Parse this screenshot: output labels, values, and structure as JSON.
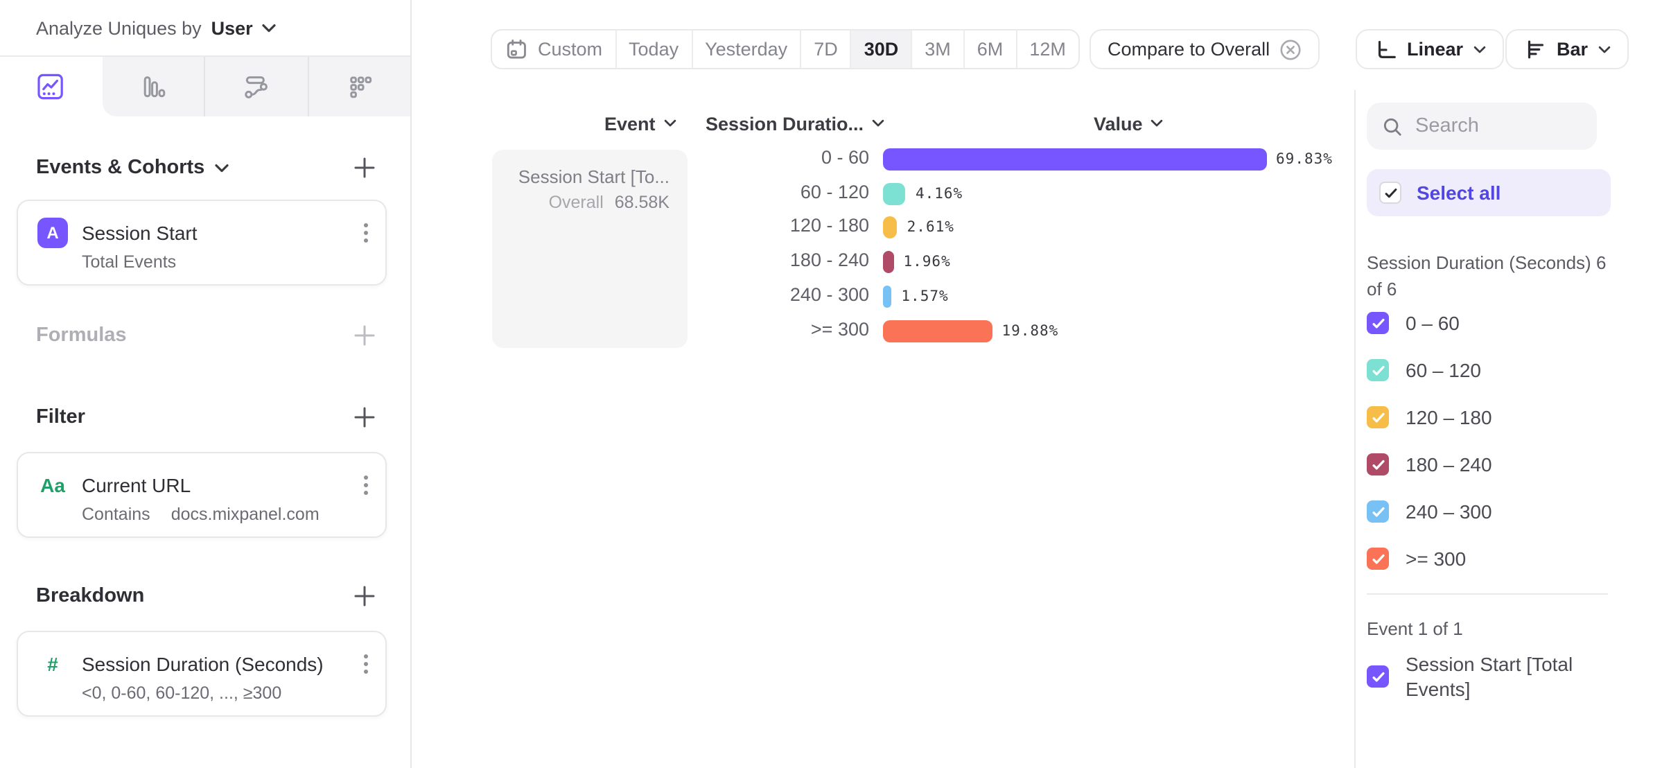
{
  "header": {
    "prefix": "Analyze Uniques by",
    "entity": "User"
  },
  "view_tabs": {
    "icons": [
      "insights",
      "bar-chart",
      "flows",
      "retention"
    ],
    "selected_index": 0
  },
  "builder": {
    "events": {
      "title": "Events & Cohorts",
      "card": {
        "badge": "A",
        "title": "Session Start",
        "subtitle": "Total Events"
      }
    },
    "formulas": {
      "title": "Formulas"
    },
    "filter": {
      "title": "Filter",
      "card": {
        "badge": "Aa",
        "title": "Current URL",
        "operator": "Contains",
        "value": "docs.mixpanel.com"
      }
    },
    "breakdown": {
      "title": "Breakdown",
      "card": {
        "badge": "#",
        "title": "Session Duration (Seconds)",
        "subtitle": "<0, 0-60, 60-120, ..., ≥300"
      }
    }
  },
  "toolbar": {
    "date_ranges": [
      "Custom",
      "Today",
      "Yesterday",
      "7D",
      "30D",
      "3M",
      "6M",
      "12M"
    ],
    "active_range": "30D",
    "compare_label": "Compare to Overall",
    "scale_label": "Linear",
    "chart_type_label": "Bar"
  },
  "chart_data": {
    "type": "bar",
    "orientation": "horizontal",
    "column_headers": [
      "Event",
      "Session Duratio...",
      "Value"
    ],
    "row_group": {
      "event_label": "Session Start [To...",
      "overall_label": "Overall",
      "overall_value": "68.58K"
    },
    "categories": [
      "0 - 60",
      "60 - 120",
      "120 - 180",
      "180 - 240",
      "240 - 300",
      ">= 300"
    ],
    "values": [
      69.83,
      4.16,
      2.61,
      1.96,
      1.57,
      19.88
    ],
    "value_labels": [
      "69.83%",
      "4.16%",
      "2.61%",
      "1.96%",
      "1.57%",
      "19.88%"
    ],
    "colors": [
      "#7856FF",
      "#7CE0D3",
      "#F6BE49",
      "#AF4A67",
      "#77C1F4",
      "#FA7357"
    ],
    "xlim": [
      0,
      71
    ],
    "grid": false,
    "legend_position": "right"
  },
  "legend": {
    "search_placeholder": "Search",
    "select_all_label": "Select all",
    "groups": [
      {
        "label": "Session Duration (Seconds) 6 of 6",
        "items": [
          {
            "label": "0 – 60",
            "color": "#7856FF",
            "checked": true
          },
          {
            "label": "60 – 120",
            "color": "#7CE0D3",
            "checked": true
          },
          {
            "label": "120 – 180",
            "color": "#F6BE49",
            "checked": true
          },
          {
            "label": "180 – 240",
            "color": "#AF4A67",
            "checked": true
          },
          {
            "label": "240 – 300",
            "color": "#77C1F4",
            "checked": true
          },
          {
            "label": ">= 300",
            "color": "#FA7357",
            "checked": true
          }
        ]
      },
      {
        "label": "Event 1 of 1",
        "items": [
          {
            "label": "Session Start [Total Events]",
            "color": "#7856FF",
            "checked": true
          }
        ]
      }
    ]
  }
}
